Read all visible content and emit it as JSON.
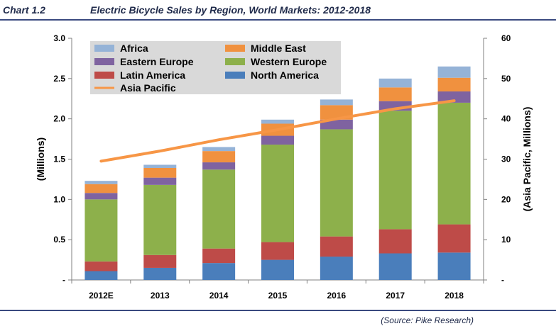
{
  "header": {
    "chart_label": "Chart 1.2",
    "title": "Electric Bicycle Sales by Region, World Markets: 2012-2018"
  },
  "footer": {
    "source": "(Source: Pike Research)"
  },
  "colors": {
    "africa": "#95b3d7",
    "middle_east": "#f0913f",
    "eastern_europe": "#7f63a0",
    "western_europe": "#8db04b",
    "latin_america": "#be4b48",
    "north_america": "#4a7ebb",
    "asia_pacific": "#f79646",
    "legend_bg": "#d9d9d9"
  },
  "chart_data": {
    "type": "bar",
    "stacked": true,
    "categories": [
      "2012E",
      "2013",
      "2014",
      "2015",
      "2016",
      "2017",
      "2018"
    ],
    "ylabel": "(Millions)",
    "y2label": "(Asia Pacific, Millions)",
    "ylim": [
      0,
      3.0
    ],
    "y2lim": [
      0,
      60
    ],
    "yticks": [
      0,
      0.5,
      1.0,
      1.5,
      2.0,
      2.5,
      3.0
    ],
    "ytick_labels": [
      "-",
      "0.5",
      "1.0",
      "1.5",
      "2.0",
      "2.5",
      "3.0"
    ],
    "y2ticks": [
      0,
      10,
      20,
      30,
      40,
      50,
      60
    ],
    "y2tick_labels": [
      "-",
      "10",
      "20",
      "30",
      "40",
      "50",
      "60"
    ],
    "series": [
      {
        "name": "North America",
        "key": "north_america",
        "values": [
          0.11,
          0.15,
          0.21,
          0.25,
          0.29,
          0.33,
          0.34
        ]
      },
      {
        "name": "Latin America",
        "key": "latin_america",
        "values": [
          0.12,
          0.16,
          0.18,
          0.22,
          0.25,
          0.3,
          0.35
        ]
      },
      {
        "name": "Western Europe",
        "key": "western_europe",
        "values": [
          0.77,
          0.87,
          0.98,
          1.21,
          1.33,
          1.47,
          1.51
        ]
      },
      {
        "name": "Eastern Europe",
        "key": "eastern_europe",
        "values": [
          0.08,
          0.09,
          0.09,
          0.11,
          0.12,
          0.12,
          0.14
        ]
      },
      {
        "name": "Middle East",
        "key": "middle_east",
        "values": [
          0.11,
          0.12,
          0.14,
          0.15,
          0.18,
          0.17,
          0.17
        ]
      },
      {
        "name": "Africa",
        "key": "africa",
        "values": [
          0.04,
          0.04,
          0.05,
          0.05,
          0.07,
          0.11,
          0.14
        ]
      }
    ],
    "line_series": {
      "name": "Asia Pacific",
      "key": "asia_pacific",
      "axis": "secondary",
      "values": [
        29.5,
        32.0,
        34.8,
        37.3,
        40.0,
        42.5,
        44.5
      ]
    },
    "legend": {
      "position": "top-left",
      "rows": [
        [
          {
            "label": "Africa",
            "key": "africa",
            "kind": "box"
          },
          {
            "label": "Middle East",
            "key": "middle_east",
            "kind": "box"
          }
        ],
        [
          {
            "label": "Eastern Europe",
            "key": "eastern_europe",
            "kind": "box"
          },
          {
            "label": "Western Europe",
            "key": "western_europe",
            "kind": "box"
          }
        ],
        [
          {
            "label": "Latin America",
            "key": "latin_america",
            "kind": "box"
          },
          {
            "label": "North America",
            "key": "north_america",
            "kind": "box"
          }
        ],
        [
          {
            "label": "Asia Pacific",
            "key": "asia_pacific",
            "kind": "line"
          }
        ]
      ]
    }
  }
}
